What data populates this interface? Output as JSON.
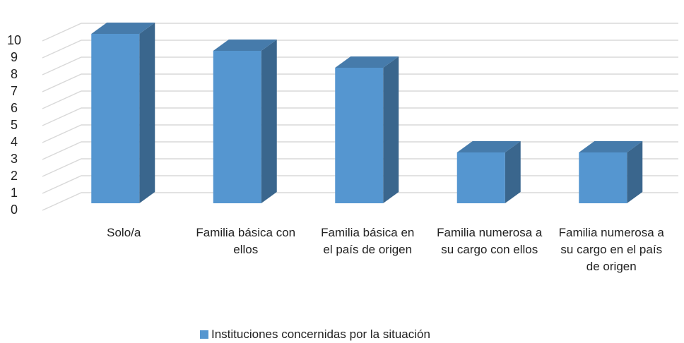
{
  "chart_data": {
    "type": "bar3d",
    "categories": [
      "Solo/a",
      "Familia básica con ellos",
      "Familia básica en el país de origen",
      "Familia numerosa a su cargo con ellos",
      "Familia numerosa a su cargo en el país de origen"
    ],
    "series": [
      {
        "name": "Instituciones concernidas por la situación",
        "color": "#5596d0",
        "values": [
          10,
          9,
          8,
          3,
          3
        ]
      }
    ],
    "ylim": [
      0,
      10
    ],
    "yticks": [
      0,
      1,
      2,
      3,
      4,
      5,
      6,
      7,
      8,
      9,
      10
    ],
    "grid": true,
    "legend": "bottom"
  }
}
